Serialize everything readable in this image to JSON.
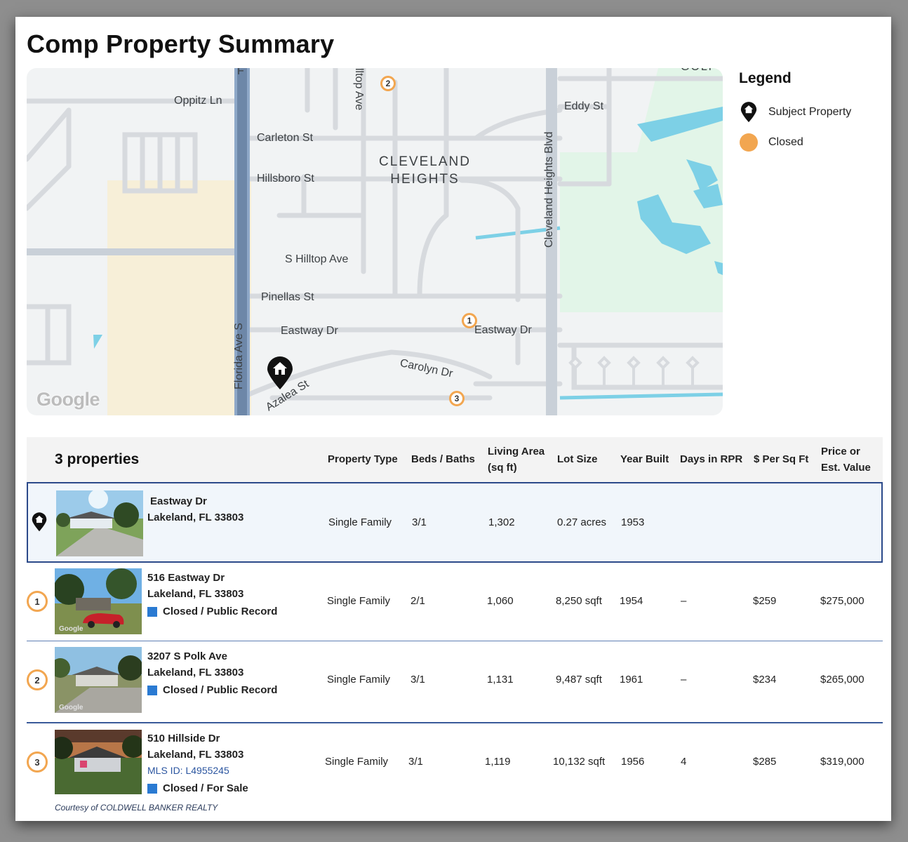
{
  "title": "Comp Property Summary",
  "map": {
    "streets": {
      "oppitz": "Oppitz Ln",
      "carleton": "Carleton St",
      "hillsboro": "Hillsboro St",
      "s_hilltop": "S Hilltop Ave",
      "pinellas": "Pinellas St",
      "eastway_left": "Eastway Dr",
      "eastway_right": "Eastway Dr",
      "carolyn": "Carolyn Dr",
      "azalea": "Azalea St",
      "florida": "Florida Ave S",
      "cleveland_blvd": "Cleveland Heights Blvd",
      "eddy": "Eddy St",
      "hilltop_partial": "lltop Ave",
      "top_f": "F",
      "golf_partial": "GOLF"
    },
    "area_label_1": "CLEVELAND",
    "area_label_2": "HEIGHTS",
    "logo": "Google",
    "markers": [
      "1",
      "2",
      "3"
    ]
  },
  "legend": {
    "title": "Legend",
    "items": [
      {
        "label": "Subject Property",
        "icon": "house-pin-icon"
      },
      {
        "label": "Closed",
        "icon": "orange-circle",
        "color": "#f2a650"
      }
    ]
  },
  "table": {
    "count": "3 properties",
    "headers": {
      "type": "Property Type",
      "beds": "Beds / Baths",
      "living_1": "Living Area",
      "living_2": "(sq ft)",
      "lot": "Lot Size",
      "year": "Year Built",
      "days": "Days in RPR",
      "ppsf": "$ Per Sq Ft",
      "price_1": "Price or",
      "price_2": "Est. Value"
    },
    "subject": {
      "street": "Eastway Dr",
      "city": "Lakeland, FL 33803",
      "type": "Single Family",
      "beds": "3/1",
      "living": "1,302",
      "lot": "0.27 acres",
      "year": "1953"
    },
    "comps": [
      {
        "marker": "1",
        "street": "516 Eastway Dr",
        "city": "Lakeland, FL 33803",
        "status": "Closed / Public Record",
        "type": "Single Family",
        "beds": "2/1",
        "living": "1,060",
        "lot": "8,250 sqft",
        "year": "1954",
        "days": "–",
        "ppsf": "$259",
        "price": "$275,000",
        "photo_credit": "Google"
      },
      {
        "marker": "2",
        "street": "3207 S Polk Ave",
        "city": "Lakeland, FL 33803",
        "status": "Closed / Public Record",
        "type": "Single Family",
        "beds": "3/1",
        "living": "1,131",
        "lot": "9,487 sqft",
        "year": "1961",
        "days": "–",
        "ppsf": "$234",
        "price": "$265,000",
        "photo_credit": "Google"
      },
      {
        "marker": "3",
        "street": "510 Hillside Dr",
        "city": "Lakeland, FL 33803",
        "mls": "MLS ID: L4955245",
        "status": "Closed / For Sale",
        "type": "Single Family",
        "beds": "3/1",
        "living": "1,119",
        "lot": "10,132 sqft",
        "year": "1956",
        "days": "4",
        "ppsf": "$285",
        "price": "$319,000",
        "courtesy": "Courtesy of COLDWELL BANKER REALTY"
      }
    ]
  },
  "colors": {
    "closed": "#f2a650",
    "status_square": "#2a7ad2",
    "row_border": "#2c4a8a"
  }
}
